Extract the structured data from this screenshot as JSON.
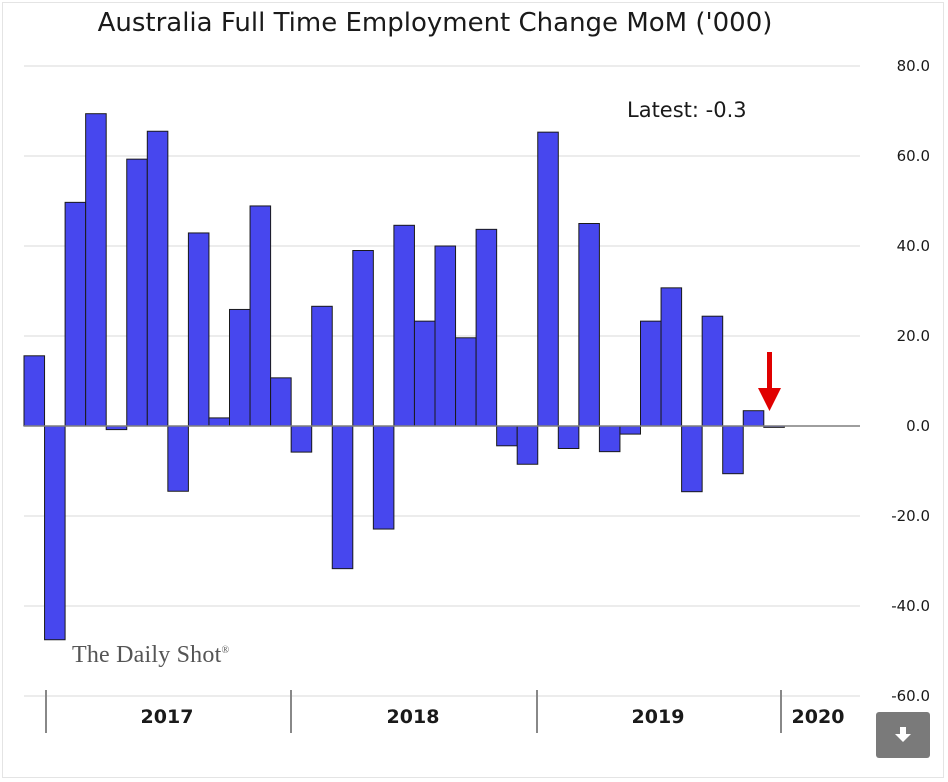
{
  "chart_data": {
    "type": "bar",
    "title": "Australia Full Time Employment Change MoM ('000)",
    "annotation": "Latest:  -0.3",
    "values": [
      15.6,
      -47.5,
      49.7,
      69.4,
      -0.8,
      59.3,
      65.5,
      -14.5,
      42.9,
      1.8,
      25.9,
      48.9,
      10.7,
      -5.8,
      26.6,
      -31.7,
      39.0,
      -22.9,
      44.6,
      23.3,
      40.0,
      19.6,
      43.7,
      -4.4,
      -8.5,
      65.3,
      -5.0,
      45.0,
      -5.7,
      -1.8,
      23.3,
      30.7,
      -14.6,
      24.4,
      -10.6,
      3.4,
      -0.3
    ],
    "years": [
      "2017",
      "2018",
      "2019",
      "2020"
    ],
    "ylim": [
      -60,
      80
    ],
    "yticks": [
      "80.0",
      "60.0",
      "40.0",
      "20.0",
      "0.0",
      "-20.0",
      "-40.0",
      "-60.0"
    ],
    "bar_color": "#4747ee",
    "grid": true,
    "highlight_arrow_color": "#e00000"
  },
  "watermark": "The Daily Shot",
  "watermark_reg": "®",
  "download_icon": "download-arrow-icon"
}
